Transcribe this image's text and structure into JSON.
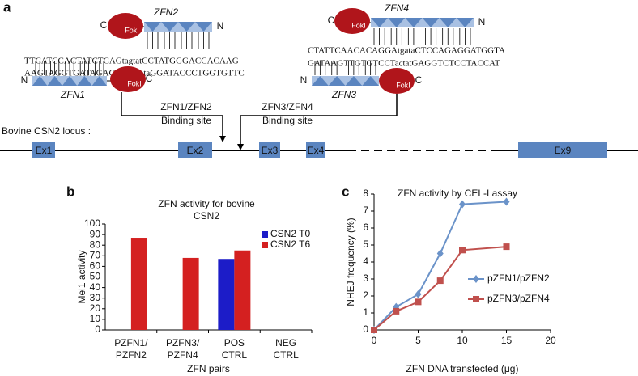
{
  "figure_a": {
    "label": "a",
    "zfns": [
      {
        "name": "ZFN2",
        "c": "C",
        "n": "N",
        "fok": "FokI"
      },
      {
        "name": "ZFN1",
        "c": "C",
        "n": "N",
        "fok": "FokI"
      },
      {
        "name": "ZFN4",
        "c": "C",
        "n": "N",
        "fok": "FokI"
      },
      {
        "name": "ZFN3",
        "c": "C",
        "n": "N",
        "fok": "FokI"
      }
    ],
    "sequences": [
      "TTCATCCACTATCTCAGtagtatCCTATGGGACCACAAG",
      "AAGTAGGTGATAGAGTCAtcataGGATACCCTGGTGTTC",
      "CTATTCAACACAGGAtgataCTCCAGAGGATGGTA",
      "GATAAGTTGTGTCCTactatGAGGTCTCCTACCAT"
    ],
    "binding_sites": [
      {
        "name": "ZFN1/ZFN2",
        "label": "Binding site"
      },
      {
        "name": "ZFN3/ZFN4",
        "label": "Binding site"
      }
    ],
    "locus_label": "Bovine CSN2 locus :",
    "exons": [
      "Ex1",
      "Ex2",
      "Ex3",
      "Ex4",
      "Ex9"
    ]
  },
  "chart_data": [
    {
      "type": "bar",
      "label": "b",
      "title": "ZFN activity for bovine\nCSN2",
      "x_label": "ZFN pairs",
      "y_label": "Mel1 activity",
      "categories": [
        "PZFN1/\nPZFN2",
        "PZFN3/\nPZFN4",
        "POS\nCTRL",
        "NEG\nCTRL"
      ],
      "series": [
        {
          "name": "CSN2 T0",
          "color": "#1c1cc8",
          "values": [
            0,
            0,
            67,
            0
          ]
        },
        {
          "name": "CSN2 T6",
          "color": "#d42020",
          "values": [
            87,
            68,
            75,
            0
          ]
        }
      ],
      "ylim": [
        0,
        100
      ],
      "yticks": [
        0,
        10,
        20,
        30,
        40,
        50,
        60,
        70,
        80,
        90,
        100
      ],
      "grid": false,
      "legend": "top-right"
    },
    {
      "type": "line",
      "label": "c",
      "title": "ZFN activity by CEL-I assay",
      "x_label": "ZFN DNA transfected (μg)",
      "y_label": "NHEJ frequency (%)",
      "x": [
        0,
        2.5,
        5,
        7.5,
        10,
        15
      ],
      "series": [
        {
          "name": "pZFN1/pZFN2",
          "color": "#6b93c9",
          "marker": "diamond",
          "values": [
            0,
            1.35,
            2.1,
            4.5,
            7.4,
            7.55
          ]
        },
        {
          "name": "pZFN3/pZFN4",
          "color": "#c0504d",
          "marker": "square",
          "values": [
            0,
            1.1,
            1.65,
            2.9,
            4.7,
            4.9
          ]
        }
      ],
      "xlim": [
        0,
        20
      ],
      "xticks": [
        0,
        5,
        10,
        15,
        20
      ],
      "ylim": [
        0,
        8
      ],
      "yticks": [
        0,
        1,
        2,
        3,
        4,
        5,
        6,
        7,
        8
      ],
      "grid": false,
      "legend": "center-right"
    }
  ]
}
